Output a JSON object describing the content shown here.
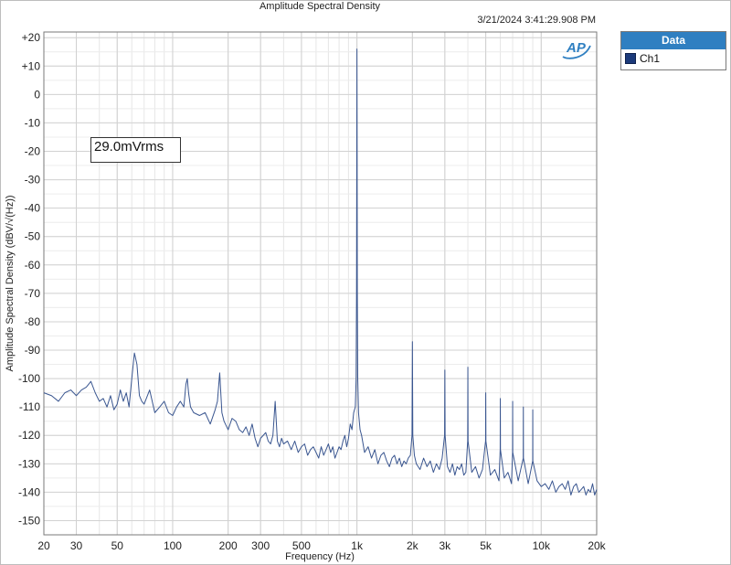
{
  "chart_data": {
    "type": "line",
    "title": "Amplitude Spectral Density",
    "timestamp": "3/21/2024 3:41:29.908 PM",
    "xlabel": "Frequency (Hz)",
    "ylabel": "Amplitude Spectral Density (dBV/√(Hz))",
    "xscale": "log",
    "xlim": [
      20,
      20000
    ],
    "ylim": [
      -155,
      22
    ],
    "grid": true,
    "legend_placement": "right",
    "legend_title": "Data",
    "x_ticks": [
      20,
      30,
      50,
      100,
      200,
      300,
      500,
      1000,
      2000,
      3000,
      5000,
      10000,
      20000
    ],
    "x_tick_labels": [
      "20",
      "30",
      "50",
      "100",
      "200",
      "300",
      "500",
      "1k",
      "2k",
      "3k",
      "5k",
      "10k",
      "20k"
    ],
    "y_ticks": [
      20,
      10,
      0,
      -10,
      -20,
      -30,
      -40,
      -50,
      -60,
      -70,
      -80,
      -90,
      -100,
      -110,
      -120,
      -130,
      -140,
      -150
    ],
    "y_tick_labels": [
      "+20",
      "+10",
      "0",
      "-10",
      "-20",
      "-30",
      "-40",
      "-50",
      "-60",
      "-70",
      "-80",
      "-90",
      "-100",
      "-110",
      "-120",
      "-130",
      "-140",
      "-150"
    ],
    "annotations": [
      {
        "text": "29.0mVrms"
      }
    ],
    "series": [
      {
        "name": "Ch1",
        "color": "#3a5690",
        "x": [
          20,
          22,
          24,
          26,
          28,
          30,
          32,
          34,
          36,
          38,
          40,
          42,
          44,
          46,
          48,
          50,
          52,
          54,
          56,
          58,
          60,
          62,
          64,
          66,
          68,
          70,
          75,
          80,
          85,
          90,
          95,
          100,
          105,
          110,
          115,
          118,
          120,
          122,
          125,
          130,
          140,
          150,
          160,
          170,
          175,
          180,
          185,
          190,
          200,
          210,
          220,
          230,
          240,
          250,
          260,
          270,
          280,
          290,
          300,
          310,
          320,
          330,
          340,
          350,
          360,
          370,
          380,
          390,
          400,
          420,
          440,
          460,
          480,
          500,
          520,
          540,
          560,
          580,
          600,
          620,
          640,
          660,
          680,
          700,
          720,
          740,
          760,
          780,
          800,
          820,
          840,
          860,
          880,
          900,
          920,
          940,
          960,
          980,
          990,
          995,
          1000,
          1005,
          1010,
          1020,
          1040,
          1060,
          1100,
          1150,
          1200,
          1250,
          1300,
          1350,
          1400,
          1450,
          1500,
          1550,
          1600,
          1650,
          1700,
          1750,
          1800,
          1850,
          1900,
          1950,
          1990,
          2000,
          2010,
          2050,
          2100,
          2200,
          2300,
          2400,
          2500,
          2600,
          2700,
          2800,
          2900,
          2990,
          3000,
          3010,
          3100,
          3200,
          3300,
          3400,
          3500,
          3600,
          3700,
          3800,
          3900,
          3990,
          4000,
          4010,
          4200,
          4400,
          4600,
          4800,
          4990,
          5000,
          5010,
          5300,
          5600,
          5900,
          5990,
          6000,
          6010,
          6300,
          6600,
          6900,
          6990,
          7000,
          7010,
          7500,
          7990,
          8000,
          8010,
          8500,
          8990,
          9000,
          9010,
          9500,
          10000,
          10500,
          11000,
          11500,
          12000,
          12500,
          13000,
          13500,
          14000,
          14500,
          15000,
          15500,
          16000,
          16500,
          17000,
          17500,
          18000,
          18500,
          19000,
          19500,
          20000
        ],
        "y": [
          -105,
          -106,
          -108,
          -105,
          -104,
          -106,
          -104,
          -103,
          -101,
          -105,
          -108,
          -107,
          -110,
          -106,
          -111,
          -109,
          -104,
          -108,
          -105,
          -110,
          -100,
          -91,
          -95,
          -106,
          -108,
          -109,
          -104,
          -112,
          -110,
          -108,
          -112,
          -113,
          -110,
          -108,
          -110,
          -102,
          -100,
          -105,
          -110,
          -112,
          -113,
          -112,
          -116,
          -111,
          -108,
          -98,
          -112,
          -115,
          -118,
          -114,
          -115,
          -118,
          -119,
          -117,
          -120,
          -116,
          -121,
          -124,
          -121,
          -120,
          -119,
          -122,
          -123,
          -120,
          -108,
          -122,
          -124,
          -121,
          -123,
          -122,
          -125,
          -122,
          -126,
          -124,
          -123,
          -127,
          -125,
          -124,
          -126,
          -128,
          -124,
          -127,
          -125,
          -123,
          -126,
          -124,
          -128,
          -126,
          -124,
          -125,
          -122,
          -120,
          -124,
          -121,
          -116,
          -118,
          -112,
          -110,
          -100,
          -70,
          16,
          -70,
          -100,
          -112,
          -118,
          -120,
          -126,
          -124,
          -128,
          -125,
          -130,
          -127,
          -126,
          -129,
          -131,
          -128,
          -127,
          -130,
          -128,
          -131,
          -129,
          -130,
          -128,
          -127,
          -120,
          -87,
          -120,
          -127,
          -130,
          -132,
          -128,
          -131,
          -129,
          -133,
          -130,
          -132,
          -128,
          -120,
          -97,
          -120,
          -131,
          -133,
          -130,
          -134,
          -131,
          -132,
          -130,
          -134,
          -133,
          -122,
          -96,
          -122,
          -133,
          -131,
          -135,
          -132,
          -122,
          -105,
          -122,
          -134,
          -132,
          -136,
          -125,
          -107,
          -125,
          -135,
          -133,
          -137,
          -126,
          -108,
          -126,
          -136,
          -128,
          -110,
          -128,
          -137,
          -129,
          -111,
          -129,
          -136,
          -138,
          -137,
          -139,
          -136,
          -140,
          -138,
          -137,
          -139,
          -136,
          -141,
          -138,
          -137,
          -140,
          -139,
          -138,
          -141,
          -139,
          -140,
          -137,
          -141,
          -139
        ]
      }
    ]
  }
}
